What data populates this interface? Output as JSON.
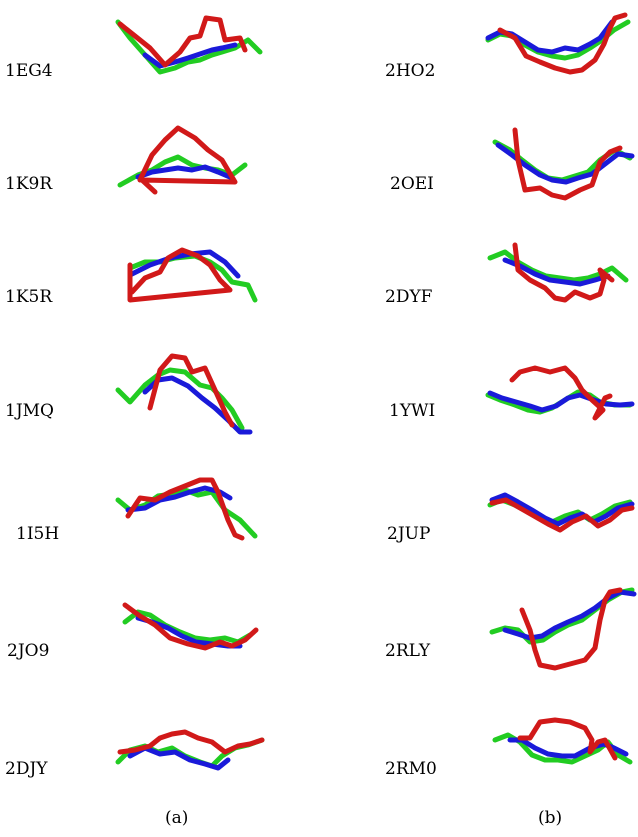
{
  "panels": {
    "a": {
      "caption": "(a)",
      "labels": [
        "1EG4",
        "1K9R",
        "1K5R",
        "1JMQ",
        "1I5H",
        "2JO9",
        "2DJY"
      ]
    },
    "b": {
      "caption": "(b)",
      "labels": [
        "2HO2",
        "2OEI",
        "2DYF",
        "1YWI",
        "2JUP",
        "2RLY",
        "2RM0"
      ]
    }
  },
  "colors": {
    "red": "#d11919",
    "green": "#22cc22",
    "blue": "#1a1ad9"
  }
}
